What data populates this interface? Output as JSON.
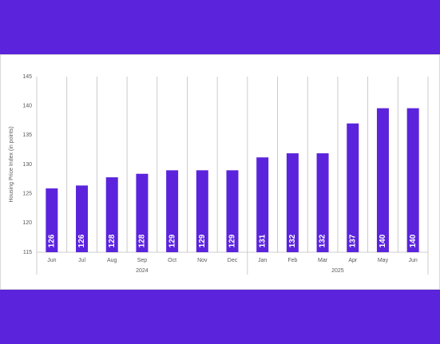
{
  "chart_data": {
    "type": "bar",
    "y_label": "Housing Price Index (in points)",
    "groups": [
      {
        "label": "2024",
        "categories": [
          "Jun",
          "Jul",
          "Aug",
          "Sep",
          "Oct",
          "Nov",
          "Dec"
        ]
      },
      {
        "label": "2025",
        "categories": [
          "Jan",
          "Feb",
          "Mar",
          "Apr",
          "May",
          "Jun"
        ]
      }
    ],
    "series": [
      {
        "color": "#5b24dc",
        "values": [
          125.9,
          126.4,
          127.8,
          128.4,
          129.0,
          129.0,
          129.0,
          131.2,
          131.9,
          131.9,
          137.0,
          139.6,
          139.6
        ],
        "value_labels": [
          "126",
          "126",
          "128",
          "128",
          "129",
          "129",
          "129",
          "131",
          "132",
          "132",
          "137",
          "140",
          "140"
        ]
      }
    ],
    "ylim": [
      115,
      145
    ],
    "yticks": [
      115,
      120,
      125,
      130,
      135,
      140,
      145
    ]
  }
}
